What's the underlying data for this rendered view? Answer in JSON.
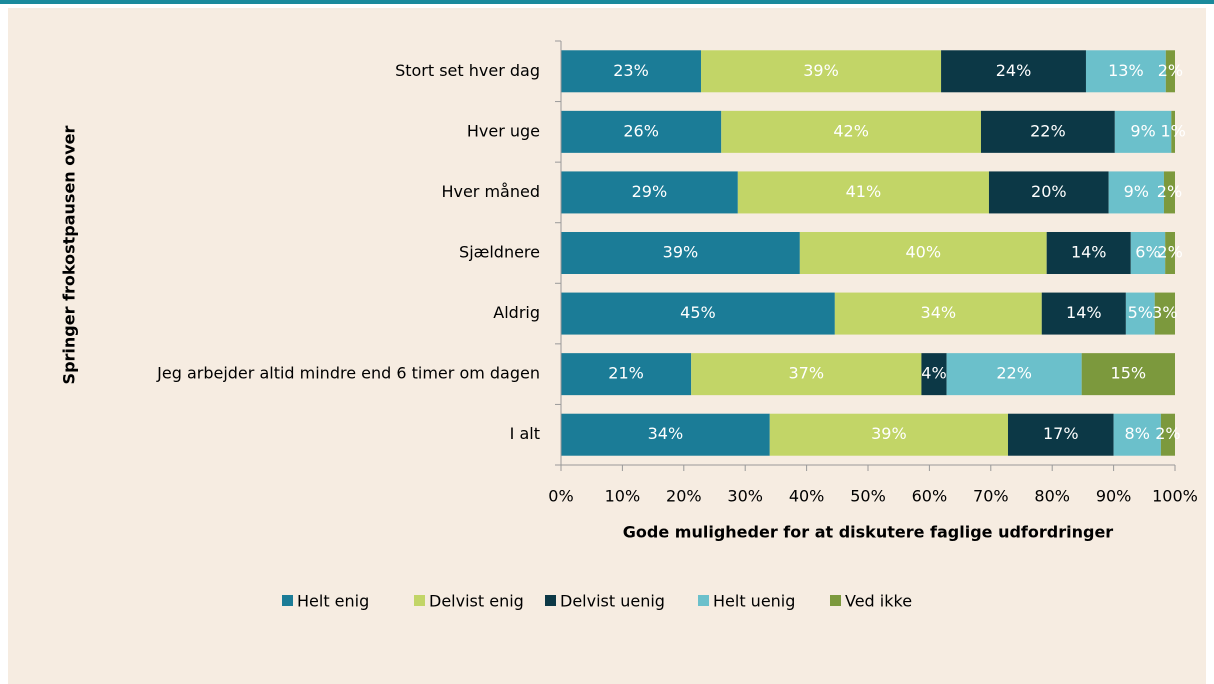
{
  "chart_data": {
    "type": "stacked_barh",
    "ylabel": "Springer frokostpausen over",
    "xlabel": "Gode muligheder for at diskutere faglige udfordringer",
    "categories": [
      "Stort set hver dag",
      "Hver uge",
      "Hver måned",
      "Sjældnere",
      "Aldrig",
      "Jeg arbejder altid mindre end 6 timer om dagen",
      "I alt"
    ],
    "series": [
      {
        "name": "Helt enig",
        "color": "#1b7c97",
        "values": [
          22.8,
          26.1,
          28.8,
          38.9,
          44.6,
          21.2,
          34.0
        ],
        "value_labels": [
          "23%",
          "26%",
          "29%",
          "39%",
          "45%",
          "21%",
          "34%"
        ]
      },
      {
        "name": "Delvist enig",
        "color": "#c2d567",
        "values": [
          39.1,
          42.3,
          40.9,
          40.2,
          33.7,
          37.5,
          38.8
        ],
        "value_labels": [
          "39%",
          "42%",
          "41%",
          "40%",
          "34%",
          "37%",
          "39%"
        ]
      },
      {
        "name": "Delvist uenig",
        "color": "#0c3846",
        "values": [
          23.6,
          21.8,
          19.5,
          13.7,
          13.7,
          4.1,
          17.2
        ],
        "value_labels": [
          "24%",
          "22%",
          "20%",
          "14%",
          "14%",
          "4%",
          "17%"
        ]
      },
      {
        "name": "Helt uenig",
        "color": "#6bc0cb",
        "values": [
          13.0,
          9.2,
          9.0,
          5.6,
          4.7,
          22.0,
          7.7
        ],
        "value_labels": [
          "13%",
          "9%",
          "9%",
          "6%",
          "5%",
          "22%",
          "8%"
        ]
      },
      {
        "name": "Ved ikke",
        "color": "#7c993d",
        "values": [
          1.5,
          0.6,
          1.8,
          1.6,
          3.3,
          15.2,
          2.3
        ],
        "value_labels": [
          "2%",
          "1%",
          "2%",
          "2%",
          "3%",
          "15%",
          "2%"
        ]
      }
    ],
    "xlim": [
      0,
      100
    ],
    "xticks": [
      {
        "value": 0,
        "label": "0%"
      },
      {
        "value": 10,
        "label": "10%"
      },
      {
        "value": 20,
        "label": "20%"
      },
      {
        "value": 30,
        "label": "30%"
      },
      {
        "value": 40,
        "label": "40%"
      },
      {
        "value": 50,
        "label": "50%"
      },
      {
        "value": 60,
        "label": "60%"
      },
      {
        "value": 70,
        "label": "70%"
      },
      {
        "value": 80,
        "label": "80%"
      },
      {
        "value": 90,
        "label": "90%"
      },
      {
        "value": 100,
        "label": "100%"
      }
    ],
    "legend": "bottom"
  }
}
